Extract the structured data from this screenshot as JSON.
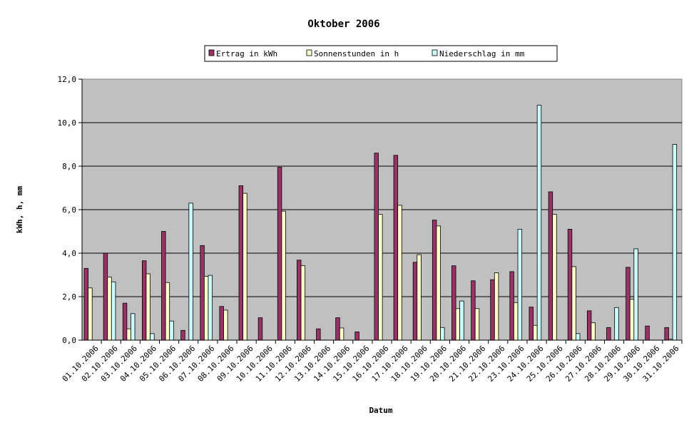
{
  "chart_data": {
    "type": "bar",
    "title": "Oktober 2006",
    "xlabel": "Datum",
    "ylabel": "kWh, h, mm",
    "ylim": [
      0,
      12
    ],
    "yticks": [
      "0,0",
      "2,0",
      "4,0",
      "6,0",
      "8,0",
      "10,0",
      "12,0"
    ],
    "grid": true,
    "legend_position": "top",
    "categories": [
      "01.10.2006",
      "02.10.2006",
      "03.10.2006",
      "04.10.2006",
      "05.10.2006",
      "06.10.2006",
      "07.10.2006",
      "08.10.2006",
      "09.10.2006",
      "10.10.2006",
      "11.10.2006",
      "12.10.2006",
      "13.10.2006",
      "14.10.2006",
      "15.10.2006",
      "16.10.2006",
      "17.10.2006",
      "18.10.2006",
      "19.10.2006",
      "20.10.2006",
      "21.10.2006",
      "22.10.2006",
      "23.10.2006",
      "24.10.2006",
      "25.10.2006",
      "26.10.2006",
      "27.10.2006",
      "28.10.2006",
      "29.10.2006",
      "30.10.2006",
      "31.10.2006"
    ],
    "series": [
      {
        "name": "Ertrag in kWh",
        "color": "#993366",
        "values": [
          3.3,
          4.0,
          1.7,
          3.65,
          5.0,
          0.45,
          4.35,
          1.55,
          7.1,
          1.03,
          7.95,
          3.68,
          0.52,
          1.03,
          0.38,
          8.6,
          8.5,
          3.58,
          5.52,
          3.42,
          2.73,
          2.78,
          3.15,
          1.52,
          6.82,
          5.1,
          1.35,
          0.58,
          3.35,
          0.65,
          0.58
        ]
      },
      {
        "name": "Sonnenstunden in h",
        "color": "#ffffcc",
        "values": [
          2.4,
          2.9,
          0.52,
          3.05,
          2.65,
          0.0,
          2.93,
          1.38,
          6.75,
          0.0,
          5.93,
          3.42,
          0.0,
          0.56,
          0.0,
          5.78,
          6.2,
          3.93,
          5.25,
          1.45,
          1.45,
          3.1,
          1.73,
          0.68,
          5.78,
          3.38,
          0.8,
          0.0,
          1.88,
          0.0,
          0.05
        ]
      },
      {
        "name": "Niederschlag in mm",
        "color": "#ccffff",
        "values": [
          0.0,
          2.68,
          1.22,
          0.3,
          0.88,
          6.3,
          2.98,
          0.0,
          0.0,
          0.0,
          0.0,
          0.0,
          0.0,
          0.0,
          0.0,
          0.0,
          0.0,
          0.0,
          0.58,
          1.8,
          0.0,
          0.0,
          5.1,
          10.8,
          0.0,
          0.3,
          0.0,
          1.5,
          4.2,
          0.0,
          9.0
        ]
      }
    ],
    "plot_background": "#c0c0c0"
  }
}
